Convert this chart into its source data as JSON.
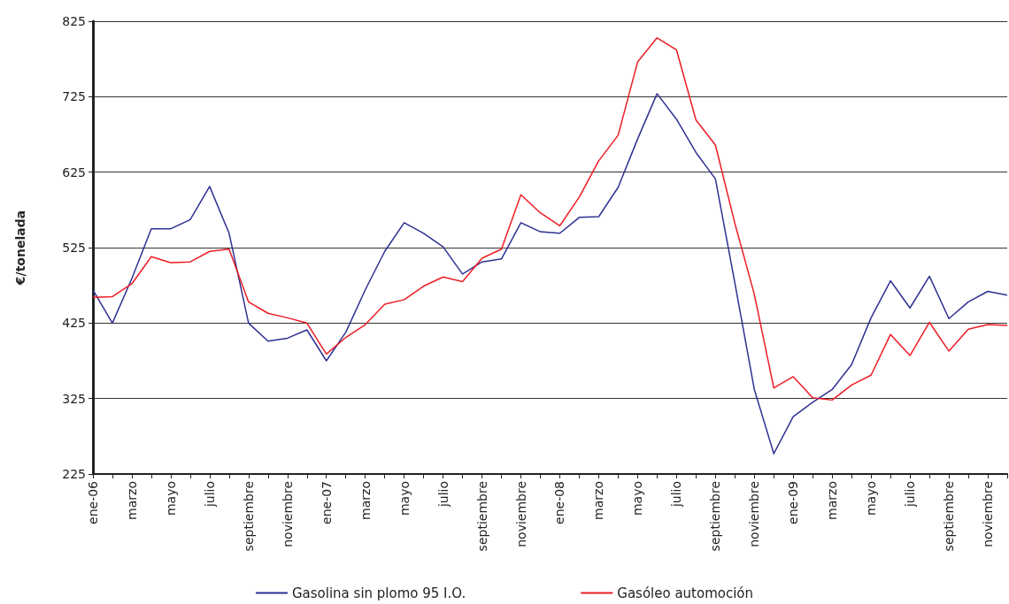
{
  "chart_data": {
    "type": "line",
    "ylabel": "€/tonelada",
    "categories": [
      "ene-06",
      null,
      "marzo",
      null,
      "mayo",
      null,
      "julio",
      null,
      "septiembre",
      null,
      "noviembre",
      null,
      "ene-07",
      null,
      "marzo",
      null,
      "mayo",
      null,
      "julio",
      null,
      "septiembre",
      null,
      "noviembre",
      null,
      "ene-08",
      null,
      "marzo",
      null,
      "mayo",
      null,
      "julio",
      null,
      "septiembre",
      null,
      "noviembre",
      null,
      "ene-09",
      null,
      "marzo",
      null,
      "mayo",
      null,
      "julio",
      null,
      "septiembre",
      null,
      "noviembre",
      null
    ],
    "series": [
      {
        "name": "Gasolina sin plomo 95 I.O.",
        "color": "#2e3192",
        "values": [
          469,
          425,
          484,
          550,
          550,
          562,
          606,
          544,
          425,
          401,
          405,
          416,
          375,
          413,
          469,
          520,
          558,
          544,
          526,
          490,
          506,
          510,
          558,
          546,
          544,
          565,
          566,
          605,
          669,
          729,
          695,
          651,
          616,
          478,
          337,
          252,
          301,
          320,
          337,
          370,
          432,
          481,
          445,
          487,
          431,
          453,
          467,
          462
        ]
      },
      {
        "name": "Gasóleo automoción",
        "color": "#ed1c24",
        "values": [
          459,
          460,
          477,
          513,
          505,
          506,
          520,
          523,
          453,
          438,
          432,
          425,
          384,
          406,
          423,
          450,
          456,
          474,
          486,
          480,
          511,
          523,
          595,
          571,
          554,
          592,
          640,
          674,
          771,
          803,
          787,
          694,
          661,
          557,
          463,
          339,
          354,
          326,
          323,
          343,
          356,
          410,
          382,
          426,
          388,
          417,
          423,
          422
        ]
      }
    ],
    "ylim": [
      225,
      825
    ],
    "yticks": [
      225,
      325,
      425,
      525,
      625,
      725,
      825
    ],
    "grid": "y",
    "legend": "bottom",
    "marker": "none",
    "line_style": "solid"
  }
}
